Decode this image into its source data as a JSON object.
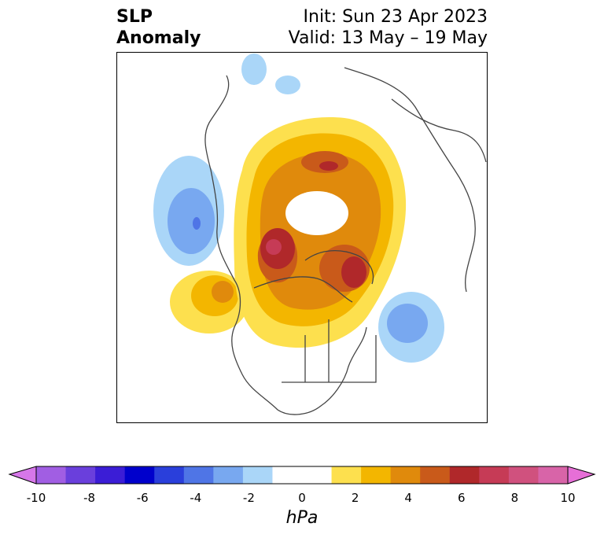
{
  "title": {
    "left_line1": "SLP",
    "left_line2": "Anomaly",
    "right_line1": "Init: Sun 23 Apr 2023",
    "right_line2": "Valid: 13 May – 19 May"
  },
  "colorbar": {
    "unit": "hPa",
    "ticks": [
      "-10",
      "-8",
      "-6",
      "-4",
      "-2",
      "0",
      "2",
      "4",
      "6",
      "8",
      "10"
    ],
    "colors": [
      "#d677e9",
      "#a15ee3",
      "#6a3fdc",
      "#3b1dd6",
      "#0000cc",
      "#2a3fdb",
      "#4f75e6",
      "#78a8f0",
      "#aad6f8",
      "#ffffff",
      "#ffffff",
      "#fde04e",
      "#f3b600",
      "#e08a0c",
      "#c95a1a",
      "#b0282a",
      "#c63b56",
      "#d0517e",
      "#d864a8",
      "#e66fd7"
    ]
  },
  "map": {
    "projection": "polar stereographic, North America / Arctic",
    "features": [
      {
        "name": "positive anomaly over Arctic / Greenland",
        "sign": "positive"
      },
      {
        "name": "positive maximum over western Canada",
        "sign": "positive"
      },
      {
        "name": "positive maximum over Greenland",
        "sign": "positive"
      },
      {
        "name": "negative anomaly over North Pacific",
        "sign": "negative"
      },
      {
        "name": "negative anomaly over North Atlantic",
        "sign": "negative"
      },
      {
        "name": "positive anomaly over eastern Pacific",
        "sign": "positive"
      }
    ]
  }
}
